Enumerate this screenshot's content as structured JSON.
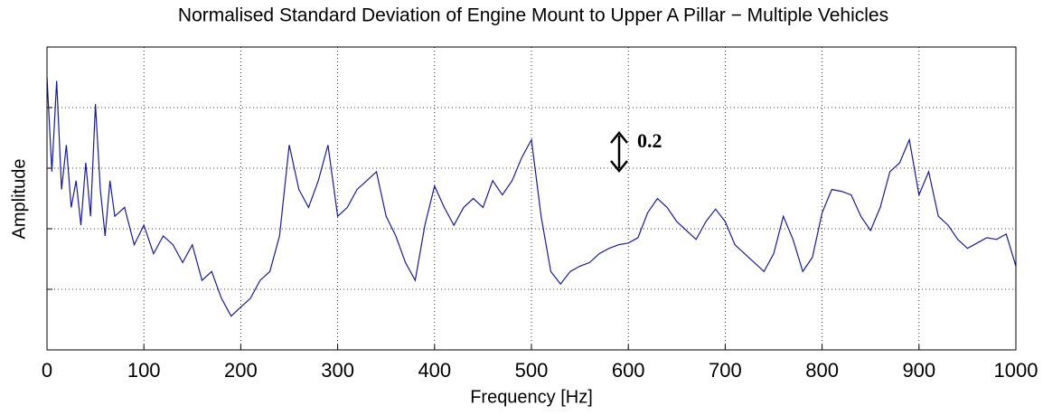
{
  "chart_data": {
    "type": "line",
    "title": "Normalised Standard Deviation of Engine Mount to Upper A Pillar − Multiple Vehicles",
    "xlabel": "Frequency [Hz]",
    "ylabel": "Amplitude",
    "annotation": "0.2",
    "x": [
      0,
      5,
      10,
      15,
      20,
      25,
      30,
      35,
      40,
      45,
      50,
      55,
      60,
      65,
      70,
      80,
      90,
      100,
      110,
      120,
      130,
      140,
      150,
      160,
      170,
      180,
      190,
      200,
      210,
      220,
      230,
      240,
      250,
      260,
      270,
      280,
      290,
      300,
      310,
      320,
      330,
      340,
      350,
      360,
      370,
      380,
      390,
      400,
      410,
      420,
      430,
      440,
      450,
      460,
      470,
      480,
      490,
      500,
      510,
      520,
      530,
      540,
      550,
      560,
      570,
      580,
      590,
      600,
      610,
      620,
      630,
      640,
      650,
      660,
      670,
      680,
      690,
      700,
      710,
      720,
      730,
      740,
      750,
      760,
      770,
      780,
      790,
      800,
      810,
      820,
      830,
      840,
      850,
      860,
      870,
      880,
      890,
      900,
      910,
      920,
      930,
      940,
      950,
      960,
      970,
      980,
      990,
      1000
    ],
    "series": [
      {
        "name": "Amplitude",
        "color": "#1a1a9c",
        "values": [
          1.53,
          1.0,
          1.51,
          0.9,
          1.15,
          0.8,
          0.95,
          0.7,
          1.05,
          0.75,
          1.38,
          0.9,
          0.64,
          0.95,
          0.75,
          0.8,
          0.59,
          0.7,
          0.54,
          0.64,
          0.59,
          0.49,
          0.59,
          0.39,
          0.44,
          0.29,
          0.19,
          0.24,
          0.29,
          0.39,
          0.44,
          0.64,
          1.15,
          0.9,
          0.8,
          0.95,
          1.15,
          0.75,
          0.8,
          0.9,
          0.95,
          1.0,
          0.75,
          0.64,
          0.49,
          0.39,
          0.7,
          0.92,
          0.8,
          0.7,
          0.8,
          0.85,
          0.8,
          0.95,
          0.87,
          0.95,
          1.08,
          1.18,
          0.75,
          0.44,
          0.37,
          0.44,
          0.47,
          0.49,
          0.54,
          0.57,
          0.59,
          0.6,
          0.63,
          0.77,
          0.85,
          0.8,
          0.72,
          0.67,
          0.62,
          0.72,
          0.79,
          0.72,
          0.59,
          0.54,
          0.49,
          0.44,
          0.54,
          0.75,
          0.62,
          0.44,
          0.52,
          0.77,
          0.9,
          0.89,
          0.87,
          0.75,
          0.67,
          0.8,
          1.0,
          1.05,
          1.18,
          0.87,
          1.0,
          0.75,
          0.7,
          0.62,
          0.57,
          0.6,
          0.63,
          0.62,
          0.65,
          0.47
        ]
      }
    ],
    "xlim": [
      0,
      1000
    ],
    "xticks": [
      0,
      100,
      200,
      300,
      400,
      500,
      600,
      700,
      800,
      900,
      1000
    ],
    "ylim": [
      0,
      1.7
    ],
    "yticks": [
      0.34,
      0.68,
      1.02,
      1.36
    ],
    "grid": true
  }
}
